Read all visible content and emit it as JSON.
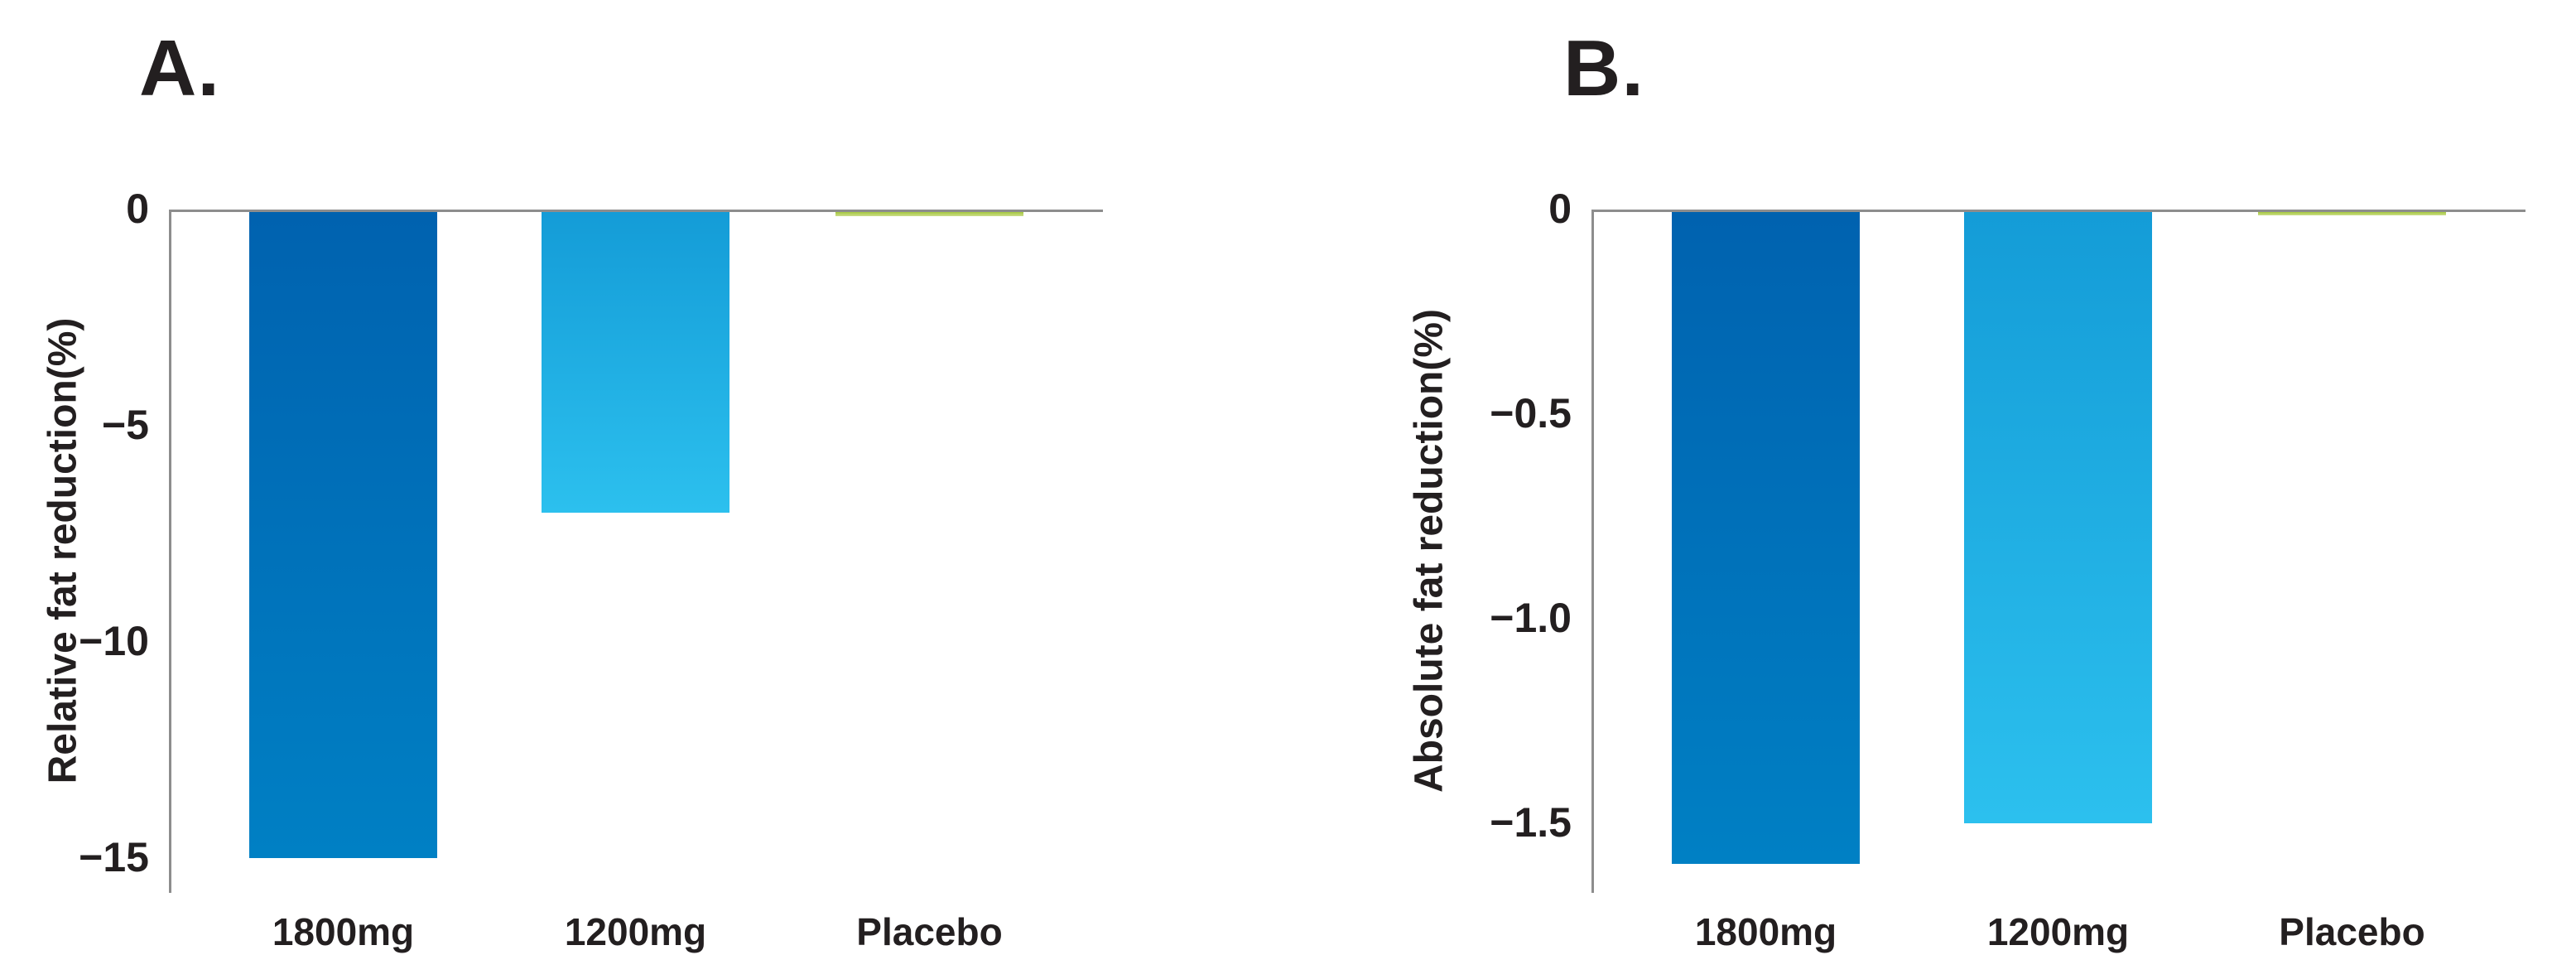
{
  "figure": {
    "background": "#ffffff",
    "axis_line_color": "#8d8d8d",
    "text_color": "#231f20"
  },
  "chart_data": [
    {
      "type": "bar",
      "panel_label": "A.",
      "title": "A.",
      "categories": [
        "1800mg",
        "1200mg",
        "Placebo"
      ],
      "values": [
        -15.0,
        -7.0,
        -0.15
      ],
      "xlabel": "",
      "ylabel": "Relative fat reduction(%)",
      "ylim": [
        -15.8,
        0
      ],
      "yticks": [
        0,
        -5,
        -10,
        -15
      ],
      "ytick_labels": [
        "0",
        "−5",
        "−10",
        "−15"
      ],
      "grid": false,
      "legend": "none",
      "bar_colors_top": [
        "#0062af",
        "#149cd7",
        "#a5c73e"
      ],
      "bar_colors_bottom": [
        "#0080c4",
        "#2cc0ee",
        "#cbdd8a"
      ]
    },
    {
      "type": "bar",
      "panel_label": "B.",
      "title": "B.",
      "categories": [
        "1800mg",
        "1200mg",
        "Placebo"
      ],
      "values": [
        -1.6,
        -1.5,
        -0.015
      ],
      "xlabel": "",
      "ylabel": "Absolute fat reduction(%)",
      "ylim": [
        -1.67,
        0
      ],
      "yticks": [
        0,
        -0.5,
        -1.0,
        -1.5
      ],
      "ytick_labels": [
        "0",
        "−0.5",
        "−1.0",
        "−1.5"
      ],
      "grid": false,
      "legend": "none",
      "bar_colors_top": [
        "#0062af",
        "#149cd7",
        "#a5c73e"
      ],
      "bar_colors_bottom": [
        "#0080c4",
        "#2cc0ee",
        "#cbdd8a"
      ]
    }
  ]
}
